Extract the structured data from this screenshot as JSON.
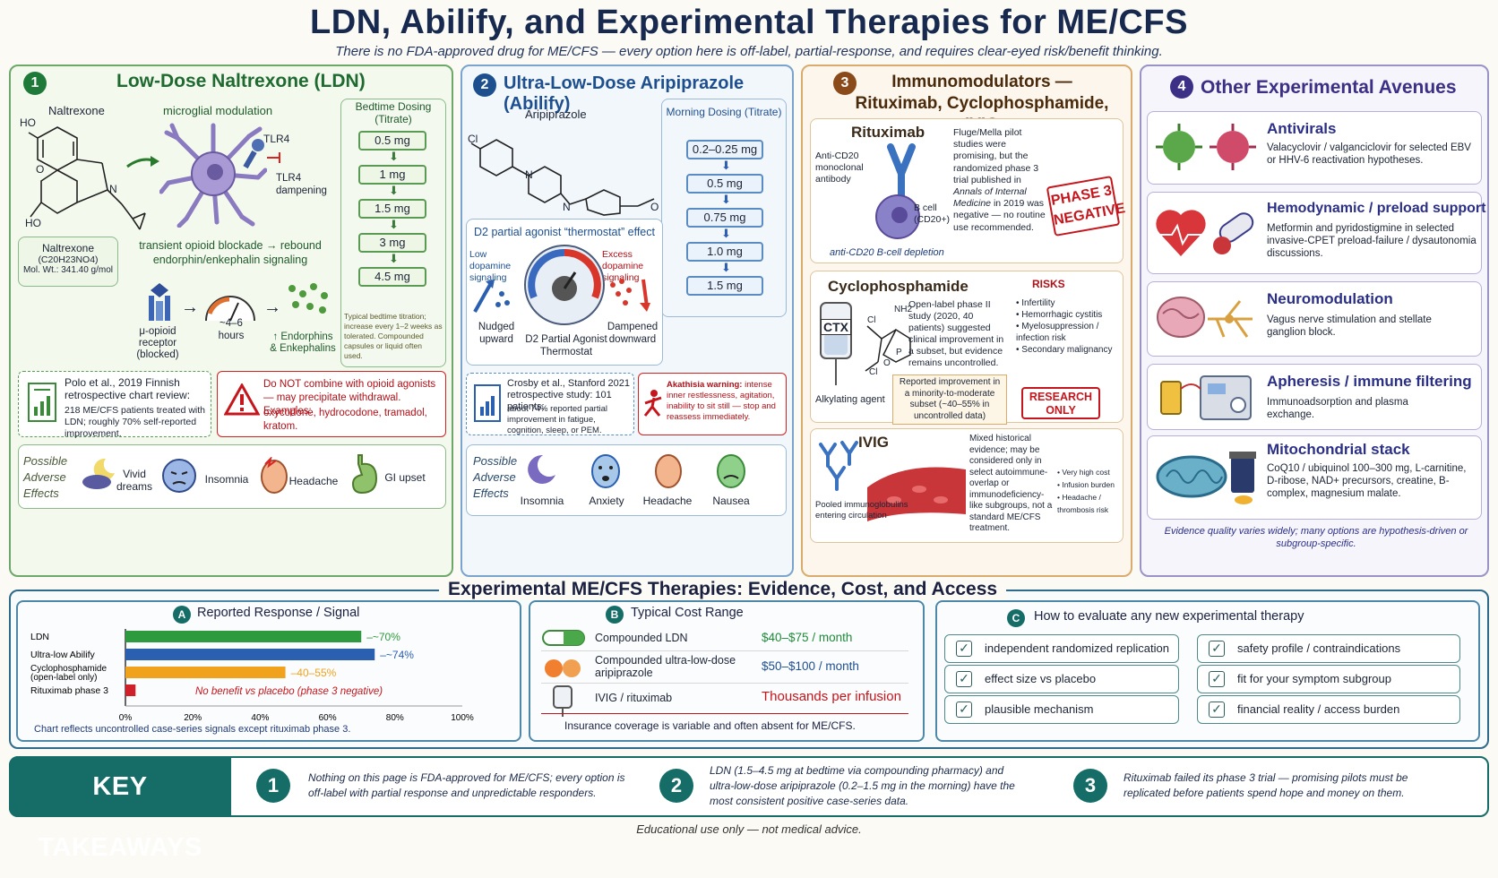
{
  "header": {
    "title": "LDN, Abilify, and Experimental Therapies for ME/CFS",
    "subtitle": "There is no FDA-approved drug for ME/CFS — every option here is off-label, partial-response, and requires clear-eyed risk/benefit thinking."
  },
  "ldn": {
    "num": "1",
    "title": "Low-Dose Naltrexone (LDN)",
    "molecule_label": "Naltrexone",
    "mech_label": "microglial modulation",
    "tlr4": "TLR4",
    "tlr4_damp": "TLR4 dampening",
    "ho1": "HO",
    "ho2": "HO",
    "o": "O",
    "n": "N",
    "formula_name": "Naltrexone",
    "formula": "(C20H23NO4)",
    "molwt": "Mol. Wt.: 341.40 g/mol",
    "blockade": "transient opioid blockade → rebound endorphin/enkephalin signaling",
    "receptor": "μ-opioid receptor (blocked)",
    "hours": "~4–6 hours",
    "endorphins": "↑ Endorphins & Enkephalins",
    "dosing_title": "Bedtime Dosing (Titrate)",
    "doses": [
      "0.5 mg",
      "1 mg",
      "1.5 mg",
      "3 mg",
      "4.5 mg"
    ],
    "dosing_note": "Typical bedtime titration; increase every 1–2 weeks as tolerated. Compounded capsules or liquid often used.",
    "study": "Polo et al., 2019 Finnish retrospective chart review:",
    "study_detail": "218 ME/CFS patients treated with LDN; roughly 70% self-reported improvement.",
    "warning": "Do NOT combine with opioid agonists — may precipitate withdrawal. Examples:",
    "warning_examples": "oxycodone, hydrocodone, tramadol, kratom.",
    "ae_head": "Possible Adverse Effects",
    "ae": [
      "Vivid dreams",
      "Insomnia",
      "Headache",
      "GI upset"
    ]
  },
  "abilify": {
    "num": "2",
    "title": "Ultra-Low-Dose Aripiprazole (Abilify)",
    "molecule_label": "Aripiprazole",
    "cl": "Cl",
    "n1": "N",
    "n2": "N",
    "o": "O",
    "dosing_title": "Morning Dosing (Titrate)",
    "doses": [
      "0.2–0.25 mg",
      "0.5 mg",
      "0.75 mg",
      "1.0 mg",
      "1.5 mg"
    ],
    "d2_title": "D2 partial agonist “thermostat” effect",
    "low": "Low dopamine signaling",
    "excess": "Excess dopamine signaling",
    "nudged": "Nudged upward",
    "dampened": "Dampened downward",
    "gauge": "D2 Partial Agonist Thermostat",
    "study": "Crosby et al., Stanford 2021 retrospective study: 101 patients;",
    "study_detail": "about 74% reported partial improvement in fatigue, cognition, sleep, or PEM.",
    "akathisia": "Akathisia warning:",
    "akathisia_detail": "intense inner restlessness, agitation, inability to sit still — stop and reassess immediately.",
    "ae_head": "Possible Adverse Effects",
    "ae": [
      "Insomnia",
      "Anxiety",
      "Headache",
      "Nausea"
    ]
  },
  "immuno": {
    "num": "3",
    "title1": "Immunomodulators —",
    "title2": "Rituximab, Cyclophosphamide, IVIG",
    "ritux_title": "Rituximab",
    "ritux_ab": "Anti-CD20 monoclonal antibody",
    "ritux_bcell": "B cell (CD20+)",
    "ritux_caption": "anti-CD20 B-cell depletion",
    "ritux_text": "Fluge/Mella pilot studies were promising, but the randomized phase 3 trial published in",
    "ritux_journal": "Annals of Internal Medicine",
    "ritux_text2": "in 2019 was negative — no routine use recommended.",
    "stamp": "PHASE 3 NEGATIVE",
    "cyclo_title": "Cyclophosphamide",
    "ctx": "CTX",
    "cl1": "Cl",
    "cl2": "Cl",
    "nh2": "NH2",
    "p": "P",
    "o": "O",
    "cyclo_agent": "Alkylating agent",
    "cyclo_text": "Open-label phase II study (2020, 40 patients) suggested clinical improvement in a subset, but evidence remains uncontrolled.",
    "cyclo_note": "Reported improvement in a minority-to-moderate subset (~40–55% in uncontrolled data)",
    "risks_title": "RISKS",
    "risks": [
      "Infertility",
      "Hemorrhagic cystitis",
      "Myelosuppression / infection risk",
      "Secondary malignancy"
    ],
    "research": "RESEARCH ONLY",
    "ivig_title": "IVIG",
    "ivig_caption": "Pooled immunoglobulins entering circulation",
    "ivig_text": "Mixed historical evidence; may be considered only in select autoimmune-overlap or immunodeficiency-like subgroups, not a standard ME/CFS treatment.",
    "ivig_risks": [
      "Very high cost",
      "Infusion burden",
      "Headache / thrombosis risk"
    ]
  },
  "other": {
    "num": "4",
    "title": "Other Experimental Avenues",
    "items": [
      {
        "title": "Antivirals",
        "text": "Valacyclovir / valganciclovir for selected EBV or HHV-6 reactivation hypotheses."
      },
      {
        "title": "Hemodynamic / preload support",
        "text": "Metformin and pyridostigmine in selected invasive-CPET preload-failure / dysautonomia discussions."
      },
      {
        "title": "Neuromodulation",
        "text": "Vagus nerve stimulation and stellate ganglion block."
      },
      {
        "title": "Apheresis / immune filtering",
        "text": "Immunoadsorption and plasma exchange."
      },
      {
        "title": "Mitochondrial stack",
        "text": "CoQ10 / ubiquinol 100–300 mg, L-carnitine, D-ribose, NAD+ precursors, creatine, B-complex, magnesium malate."
      }
    ],
    "footnote": "Evidence quality varies widely; many options are hypothesis-driven or subgroup-specific."
  },
  "bottom": {
    "title": "Experimental ME/CFS Therapies: Evidence, Cost, and Access",
    "a_letter": "A",
    "a_title": "Reported Response / Signal",
    "b_letter": "B",
    "b_title": "Typical Cost Range",
    "c_letter": "C",
    "c_title": "How to evaluate any new experimental therapy",
    "chart_caption": "Chart reflects uncontrolled case-series signals except rituximab phase 3.",
    "no_benefit": "No benefit vs placebo (phase 3 negative)",
    "costs": [
      {
        "name": "Compounded LDN",
        "range": "$40–$75",
        "unit": "/ month"
      },
      {
        "name": "Compounded ultra-low-dose aripiprazole",
        "range": "$50–$100",
        "unit": "/ month"
      },
      {
        "name": "IVIG / rituximab",
        "range": "Thousands per infusion",
        "unit": ""
      }
    ],
    "cost_note": "Insurance coverage is variable and often absent for ME/CFS.",
    "checks": [
      "independent randomized replication",
      "safety profile / contraindications",
      "effect size vs placebo",
      "fit for your symptom subgroup",
      "plausible mechanism",
      "financial reality / access burden"
    ],
    "check_mark": "✓"
  },
  "chart_data": {
    "type": "bar",
    "orientation": "horizontal",
    "title": "Reported Response / Signal",
    "categories": [
      "LDN",
      "Ultra-low Abilify",
      "Cyclophosphamide (open-label only)",
      "Rituximab phase 3"
    ],
    "values": [
      70,
      74,
      47.5,
      3
    ],
    "value_labels": [
      "~70%",
      "~74%",
      "40–55%",
      ""
    ],
    "colors": [
      "#2e9a3e",
      "#2b5fb0",
      "#f0a21c",
      "#d0202a"
    ],
    "xlim": [
      0,
      100
    ],
    "ticks": [
      "0%",
      "20%",
      "40%",
      "60%",
      "80%",
      "100%"
    ]
  },
  "takeaways": {
    "label": "KEY TAKEAWAYS",
    "items": [
      {
        "num": "1",
        "text": "Nothing on this page is FDA-approved for ME/CFS; every option is off-label with partial response and unpredictable responders."
      },
      {
        "num": "2",
        "text": "LDN (1.5–4.5 mg at bedtime via compounding pharmacy) and ultra-low-dose aripiprazole (0.2–1.5 mg in the morning) have the most consistent positive case-series data."
      },
      {
        "num": "3",
        "text": "Rituximab failed its phase 3 trial — promising pilots must be replicated before patients spend hope and money on them."
      }
    ]
  },
  "footer": "Educational use only — not medical advice.",
  "colors": {
    "navy": "#17294f",
    "green": "#1f7a3a",
    "blue": "#1d4f8f",
    "brown": "#6b3a12",
    "purple": "#3b2f86",
    "red": "#c4161c",
    "teal": "#166d68"
  }
}
